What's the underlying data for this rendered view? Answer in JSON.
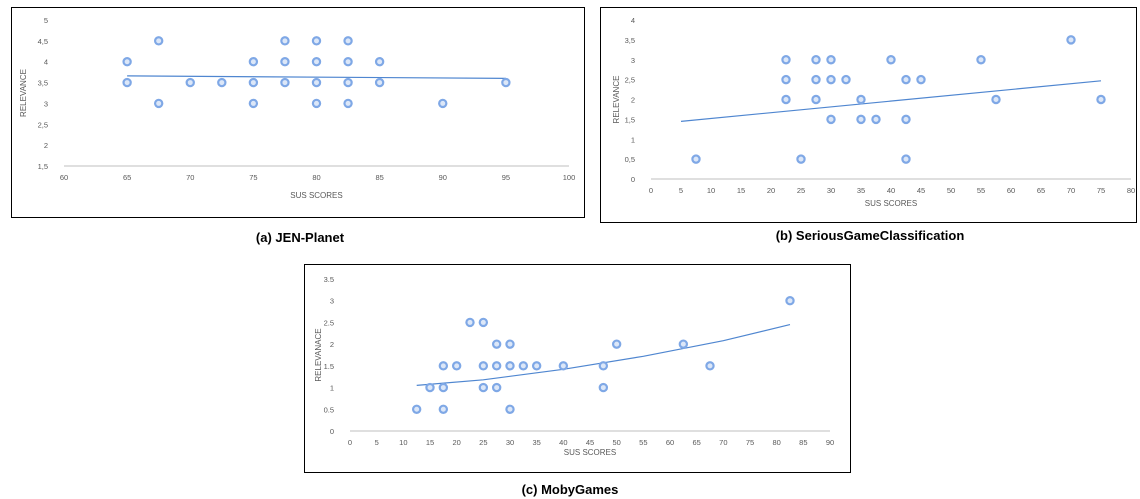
{
  "chart_data": [
    {
      "type": "scatter",
      "title": "(a) JEN-Planet",
      "xlabel": "SUS SCORES",
      "ylabel": "RELEVANCE",
      "xlim": [
        60,
        100
      ],
      "ylim": [
        1.5,
        5
      ],
      "xticks": [
        60,
        65,
        70,
        75,
        80,
        85,
        90,
        95,
        100
      ],
      "yticks": [
        1.5,
        2,
        2.5,
        3,
        3.5,
        4,
        4.5,
        5
      ],
      "xtick_labels": [
        "60",
        "65",
        "70",
        "75",
        "80",
        "85",
        "90",
        "95",
        "100"
      ],
      "ytick_labels": [
        "1,5",
        "2",
        "2,5",
        "3",
        "3,5",
        "4",
        "4,5",
        "5"
      ],
      "grid": false,
      "series": [
        {
          "points": [
            [
              65,
              4
            ],
            [
              65,
              3.5
            ],
            [
              67.5,
              4.5
            ],
            [
              67.5,
              3
            ],
            [
              70,
              3.5
            ],
            [
              72.5,
              3.5
            ],
            [
              75,
              4
            ],
            [
              75,
              3.5
            ],
            [
              75,
              3
            ],
            [
              77.5,
              4.5
            ],
            [
              77.5,
              4
            ],
            [
              77.5,
              3.5
            ],
            [
              80,
              4.5
            ],
            [
              80,
              4
            ],
            [
              80,
              3.5
            ],
            [
              80,
              3
            ],
            [
              82.5,
              4.5
            ],
            [
              82.5,
              4
            ],
            [
              82.5,
              3.5
            ],
            [
              82.5,
              3
            ],
            [
              85,
              4
            ],
            [
              85,
              3.5
            ],
            [
              90,
              3
            ],
            [
              95,
              3.5
            ]
          ],
          "trendline": {
            "from": [
              65,
              3.66
            ],
            "to": [
              95,
              3.6
            ]
          }
        }
      ]
    },
    {
      "type": "scatter",
      "title": "(b) SeriousGameClassification",
      "xlabel": "SUS SCORES",
      "ylabel": "RELEVANCE",
      "xlim": [
        0,
        80
      ],
      "ylim": [
        0,
        4
      ],
      "xticks": [
        0,
        5,
        10,
        15,
        20,
        25,
        30,
        35,
        40,
        45,
        50,
        55,
        60,
        65,
        70,
        75,
        80
      ],
      "yticks": [
        0,
        0.5,
        1,
        1.5,
        2,
        2.5,
        3,
        3.5,
        4
      ],
      "xtick_labels": [
        "0",
        "5",
        "10",
        "15",
        "20",
        "25",
        "30",
        "35",
        "40",
        "45",
        "50",
        "55",
        "60",
        "65",
        "70",
        "75",
        "80"
      ],
      "ytick_labels": [
        "0",
        "0,5",
        "1",
        "1,5",
        "2",
        "2,5",
        "3",
        "3,5",
        "4"
      ],
      "grid": false,
      "series": [
        {
          "points": [
            [
              7.5,
              0.5
            ],
            [
              22.5,
              3
            ],
            [
              22.5,
              2.5
            ],
            [
              22.5,
              2
            ],
            [
              25,
              0.5
            ],
            [
              27.5,
              3
            ],
            [
              27.5,
              2.5
            ],
            [
              27.5,
              2
            ],
            [
              30,
              3
            ],
            [
              30,
              2.5
            ],
            [
              30,
              1.5
            ],
            [
              32.5,
              2.5
            ],
            [
              35,
              2
            ],
            [
              35,
              1.5
            ],
            [
              37.5,
              1.5
            ],
            [
              40,
              3
            ],
            [
              42.5,
              2.5
            ],
            [
              42.5,
              1.5
            ],
            [
              42.5,
              0.5
            ],
            [
              45,
              2.5
            ],
            [
              55,
              3
            ],
            [
              57.5,
              2
            ],
            [
              70,
              3.5
            ],
            [
              75,
              2
            ]
          ],
          "trendline": {
            "from": [
              5,
              1.45
            ],
            "to": [
              75,
              2.47
            ]
          }
        }
      ]
    },
    {
      "type": "scatter",
      "title": "(c) MobyGames",
      "xlabel": "SUS SCORES",
      "ylabel": "RELEVANACE",
      "xlim": [
        0,
        90
      ],
      "ylim": [
        0,
        3.5
      ],
      "xticks": [
        0,
        5,
        10,
        15,
        20,
        25,
        30,
        35,
        40,
        45,
        50,
        55,
        60,
        65,
        70,
        75,
        80,
        85,
        90
      ],
      "yticks": [
        0,
        0.5,
        1,
        1.5,
        2,
        2.5,
        3,
        3.5
      ],
      "xtick_labels": [
        "0",
        "5",
        "10",
        "15",
        "20",
        "25",
        "30",
        "35",
        "40",
        "45",
        "50",
        "55",
        "60",
        "65",
        "70",
        "75",
        "80",
        "85",
        "90"
      ],
      "ytick_labels": [
        "0",
        "0.5",
        "1",
        "1.5",
        "2",
        "2.5",
        "3",
        "3.5"
      ],
      "grid": false,
      "series": [
        {
          "points": [
            [
              12.5,
              0.5
            ],
            [
              15,
              1
            ],
            [
              17.5,
              1.5
            ],
            [
              17.5,
              1
            ],
            [
              17.5,
              0.5
            ],
            [
              20,
              1.5
            ],
            [
              22.5,
              2.5
            ],
            [
              25,
              2.5
            ],
            [
              25,
              1.5
            ],
            [
              25,
              1
            ],
            [
              27.5,
              2
            ],
            [
              27.5,
              1.5
            ],
            [
              27.5,
              1
            ],
            [
              30,
              2
            ],
            [
              30,
              1.5
            ],
            [
              30,
              0.5
            ],
            [
              32.5,
              1.5
            ],
            [
              35,
              1.5
            ],
            [
              40,
              1.5
            ],
            [
              47.5,
              1.5
            ],
            [
              47.5,
              1
            ],
            [
              50,
              2
            ],
            [
              62.5,
              2
            ],
            [
              67.5,
              1.5
            ],
            [
              82.5,
              3
            ]
          ],
          "trendline": {
            "curve": [
              [
                12.5,
                1.05
              ],
              [
                25,
                1.18
              ],
              [
                40,
                1.42
              ],
              [
                55,
                1.72
              ],
              [
                70,
                2.08
              ],
              [
                82.5,
                2.45
              ]
            ]
          }
        }
      ]
    }
  ]
}
